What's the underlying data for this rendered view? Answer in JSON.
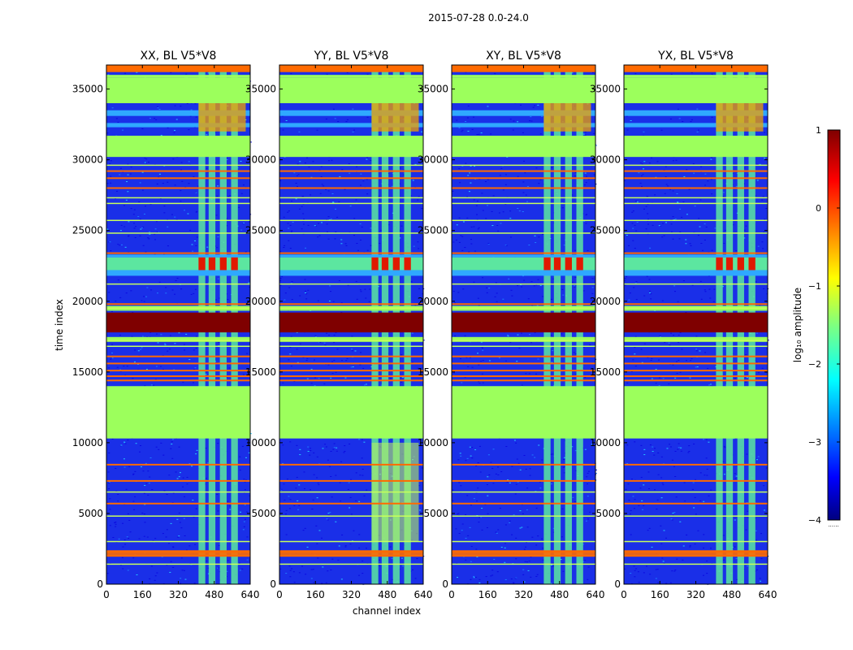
{
  "figure": {
    "suptitle": "2015-07-28 0.0-24.0",
    "xlabel": "channel index",
    "ylabel": "time index"
  },
  "chart_data": [
    {
      "type": "heatmap",
      "title": "XX, BL V5*V8",
      "x_ticks": [
        0,
        160,
        320,
        480,
        640
      ],
      "y_ticks": [
        0,
        5000,
        10000,
        15000,
        20000,
        25000,
        30000,
        35000
      ],
      "xlim": [
        0,
        640
      ],
      "ylim": [
        0,
        36700
      ],
      "colormap": "jet",
      "rfi_band_channels": [
        [
          410,
          440
        ],
        [
          455,
          485
        ],
        [
          505,
          535
        ],
        [
          555,
          585
        ]
      ],
      "yy_strong_band_channels": [],
      "bright_row_band": [
        22200,
        23100
      ]
    },
    {
      "type": "heatmap",
      "title": "YY, BL V5*V8",
      "x_ticks": [
        0,
        160,
        320,
        480,
        640
      ],
      "y_ticks": [
        0,
        5000,
        10000,
        15000,
        20000,
        25000,
        30000,
        35000
      ],
      "xlim": [
        0,
        640
      ],
      "ylim": [
        0,
        36700
      ],
      "colormap": "jet",
      "rfi_band_channels": [
        [
          410,
          440
        ],
        [
          455,
          485
        ],
        [
          505,
          535
        ],
        [
          555,
          585
        ]
      ],
      "yy_strong_band_channels": [
        [
          410,
          620
        ]
      ],
      "bright_row_band": [
        22200,
        23100
      ]
    },
    {
      "type": "heatmap",
      "title": "XY, BL V5*V8",
      "x_ticks": [
        0,
        160,
        320,
        480,
        640
      ],
      "y_ticks": [
        0,
        5000,
        10000,
        15000,
        20000,
        25000,
        30000,
        35000
      ],
      "xlim": [
        0,
        640
      ],
      "ylim": [
        0,
        36700
      ],
      "colormap": "jet",
      "rfi_band_channels": [
        [
          410,
          440
        ],
        [
          455,
          485
        ],
        [
          505,
          535
        ],
        [
          555,
          585
        ]
      ],
      "yy_strong_band_channels": [],
      "bright_row_band": [
        22200,
        23100
      ]
    },
    {
      "type": "heatmap",
      "title": "YX, BL V5*V8",
      "x_ticks": [
        0,
        160,
        320,
        480,
        640
      ],
      "y_ticks": [
        0,
        5000,
        10000,
        15000,
        20000,
        25000,
        30000,
        35000
      ],
      "xlim": [
        0,
        640
      ],
      "ylim": [
        0,
        36700
      ],
      "colormap": "jet",
      "rfi_band_channels": [
        [
          410,
          440
        ],
        [
          455,
          485
        ],
        [
          505,
          535
        ],
        [
          555,
          585
        ]
      ],
      "yy_strong_band_channels": [],
      "bright_row_band": [
        22200,
        23100
      ]
    }
  ],
  "rows": {
    "flagged_green_blocks": [
      [
        10300,
        14000
      ],
      [
        35800,
        36000
      ],
      [
        30200,
        31700
      ]
    ],
    "saturated_red_blocks": [
      [
        17800,
        19200
      ]
    ],
    "orange_lines": [
      2000,
      2300,
      8450,
      5700,
      7300,
      14400,
      14700,
      15100,
      15600,
      16100,
      19800,
      23400,
      28000,
      28700,
      29200,
      36300
    ],
    "green_lines": [
      1400,
      3000,
      4800,
      6500,
      27300,
      26900,
      25700,
      21200,
      16800,
      17200,
      19500,
      24800,
      29600
    ],
    "mid_rows": [
      [
        33100,
        33500
      ],
      [
        32300,
        32600
      ],
      [
        21800,
        22200
      ],
      [
        23100,
        23300
      ]
    ]
  },
  "colorbar": {
    "label": "log₁₀ amplitude",
    "ticks": [
      "1",
      "0",
      "−1",
      "−2",
      "−3",
      "−4"
    ],
    "tick_values": [
      1,
      0,
      -1,
      -2,
      -3,
      -4
    ],
    "vmin": -4,
    "vmax": 1,
    "footer": "......",
    "colors": {
      "jet_stops": [
        "#00007f",
        "#0000ff",
        "#007fff",
        "#00ffff",
        "#7fff7f",
        "#ffff00",
        "#ff7f00",
        "#ff0000",
        "#7f0000"
      ]
    }
  }
}
